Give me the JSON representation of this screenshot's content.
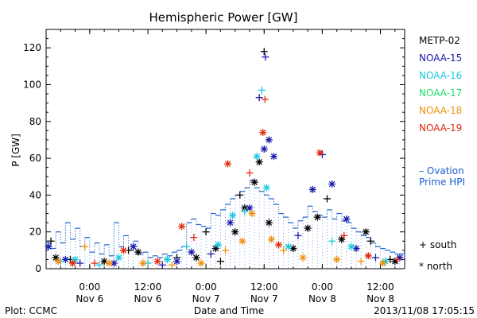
{
  "chart_data": {
    "type": "scatter",
    "title": "Hemispheric Power [GW]",
    "ylabel": "P [GW]",
    "xlabel": "Date and Time",
    "ylim": [
      0,
      130
    ],
    "yticks": [
      0,
      20,
      40,
      60,
      80,
      100,
      120
    ],
    "xlim": [
      "2013-11-05T15:00",
      "2013-11-08T17:00"
    ],
    "xticks": [
      {
        "x": "2013-11-06T00:00",
        "time": "0:00",
        "date": "Nov 6"
      },
      {
        "x": "2013-11-06T12:00",
        "time": "12:00",
        "date": "Nov 6"
      },
      {
        "x": "2013-11-07T00:00",
        "time": "0:00",
        "date": "Nov 7"
      },
      {
        "x": "2013-11-07T12:00",
        "time": "12:00",
        "date": "Nov 7"
      },
      {
        "x": "2013-11-08T00:00",
        "time": "0:00",
        "date": "Nov 8"
      },
      {
        "x": "2013-11-08T12:00",
        "time": "12:00",
        "date": "Nov 8"
      }
    ],
    "satellites": [
      {
        "name": "METP-02",
        "color": "#000000"
      },
      {
        "name": "NOAA-15",
        "color": "#1a1aaa"
      },
      {
        "name": "NOAA-16",
        "color": "#18c8e0"
      },
      {
        "name": "NOAA-17",
        "color": "#22e06a"
      },
      {
        "name": "NOAA-18",
        "color": "#f0900e"
      },
      {
        "name": "NOAA-19",
        "color": "#e02a0c"
      }
    ],
    "ovation": {
      "label_line1": "– Ovation",
      "label_line2": "Prime HPI",
      "color": "#1a5fd0",
      "points": [
        [
          "2013-11-05T15:00",
          14
        ],
        [
          "2013-11-05T16:00",
          11
        ],
        [
          "2013-11-05T17:00",
          20
        ],
        [
          "2013-11-05T18:00",
          14
        ],
        [
          "2013-11-05T19:00",
          25
        ],
        [
          "2013-11-05T20:00",
          16
        ],
        [
          "2013-11-05T21:00",
          22
        ],
        [
          "2013-11-05T22:00",
          12
        ],
        [
          "2013-11-05T23:00",
          17
        ],
        [
          "2013-11-06T00:00",
          9
        ],
        [
          "2013-11-06T01:00",
          14
        ],
        [
          "2013-11-06T02:00",
          8
        ],
        [
          "2013-11-06T03:00",
          13
        ],
        [
          "2013-11-06T04:00",
          7
        ],
        [
          "2013-11-06T05:00",
          25
        ],
        [
          "2013-11-06T06:00",
          12
        ],
        [
          "2013-11-06T07:00",
          18
        ],
        [
          "2013-11-06T08:00",
          10
        ],
        [
          "2013-11-06T09:00",
          15
        ],
        [
          "2013-11-06T10:00",
          8
        ],
        [
          "2013-11-06T11:00",
          9
        ],
        [
          "2013-11-06T12:00",
          6
        ],
        [
          "2013-11-06T13:00",
          7
        ],
        [
          "2013-11-06T14:00",
          6
        ],
        [
          "2013-11-06T15:00",
          8
        ],
        [
          "2013-11-06T16:00",
          7
        ],
        [
          "2013-11-06T17:00",
          9
        ],
        [
          "2013-11-06T18:00",
          10
        ],
        [
          "2013-11-06T19:00",
          12
        ],
        [
          "2013-11-06T20:00",
          25
        ],
        [
          "2013-11-06T21:00",
          27
        ],
        [
          "2013-11-06T22:00",
          24
        ],
        [
          "2013-11-06T23:00",
          23
        ],
        [
          "2013-11-07T00:00",
          22
        ],
        [
          "2013-11-07T01:00",
          30
        ],
        [
          "2013-11-07T02:00",
          29
        ],
        [
          "2013-11-07T03:00",
          32
        ],
        [
          "2013-11-07T04:00",
          35
        ],
        [
          "2013-11-07T05:00",
          38
        ],
        [
          "2013-11-07T06:00",
          40
        ],
        [
          "2013-11-07T07:00",
          42
        ],
        [
          "2013-11-07T08:00",
          44
        ],
        [
          "2013-11-07T09:00",
          48
        ],
        [
          "2013-11-07T10:00",
          44
        ],
        [
          "2013-11-07T11:00",
          42
        ],
        [
          "2013-11-07T12:00",
          40
        ],
        [
          "2013-11-07T13:00",
          38
        ],
        [
          "2013-11-07T14:00",
          35
        ],
        [
          "2013-11-07T15:00",
          30
        ],
        [
          "2013-11-07T16:00",
          28
        ],
        [
          "2013-11-07T17:00",
          25
        ],
        [
          "2013-11-07T18:00",
          22
        ],
        [
          "2013-11-07T19:00",
          26
        ],
        [
          "2013-11-07T20:00",
          28
        ],
        [
          "2013-11-07T21:00",
          34
        ],
        [
          "2013-11-07T22:00",
          31
        ],
        [
          "2013-11-07T23:00",
          29
        ],
        [
          "2013-11-08T00:00",
          28
        ],
        [
          "2013-11-08T01:00",
          32
        ],
        [
          "2013-11-08T02:00",
          27
        ],
        [
          "2013-11-08T03:00",
          30
        ],
        [
          "2013-11-08T04:00",
          26
        ],
        [
          "2013-11-08T05:00",
          25
        ],
        [
          "2013-11-08T06:00",
          22
        ],
        [
          "2013-11-08T07:00",
          20
        ],
        [
          "2013-11-08T08:00",
          18
        ],
        [
          "2013-11-08T09:00",
          17
        ],
        [
          "2013-11-08T10:00",
          14
        ],
        [
          "2013-11-08T11:00",
          12
        ],
        [
          "2013-11-08T12:00",
          11
        ],
        [
          "2013-11-08T13:00",
          10
        ],
        [
          "2013-11-08T14:00",
          9
        ],
        [
          "2013-11-08T15:00",
          8
        ],
        [
          "2013-11-08T16:00",
          8
        ],
        [
          "2013-11-08T17:00",
          7
        ]
      ]
    },
    "markers": [
      {
        "symbol": "+",
        "label": "south"
      },
      {
        "symbol": "*",
        "label": "north"
      }
    ],
    "points": [
      {
        "sat": "METP-02",
        "hemi": "south",
        "x": "2013-11-05T16:00",
        "y": 15
      },
      {
        "sat": "METP-02",
        "hemi": "north",
        "x": "2013-11-05T17:00",
        "y": 6
      },
      {
        "sat": "METP-02",
        "hemi": "south",
        "x": "2013-11-05T20:00",
        "y": 5
      },
      {
        "sat": "METP-02",
        "hemi": "north",
        "x": "2013-11-06T03:00",
        "y": 4
      },
      {
        "sat": "METP-02",
        "hemi": "south",
        "x": "2013-11-06T08:00",
        "y": 10
      },
      {
        "sat": "METP-02",
        "hemi": "north",
        "x": "2013-11-06T10:00",
        "y": 9
      },
      {
        "sat": "METP-02",
        "hemi": "south",
        "x": "2013-11-06T18:00",
        "y": 6
      },
      {
        "sat": "METP-02",
        "hemi": "north",
        "x": "2013-11-06T22:00",
        "y": 6
      },
      {
        "sat": "METP-02",
        "hemi": "south",
        "x": "2013-11-07T00:00",
        "y": 20
      },
      {
        "sat": "METP-02",
        "hemi": "north",
        "x": "2013-11-07T02:00",
        "y": 11
      },
      {
        "sat": "METP-02",
        "hemi": "south",
        "x": "2013-11-07T03:00",
        "y": 4
      },
      {
        "sat": "METP-02",
        "hemi": "north",
        "x": "2013-11-07T06:00",
        "y": 20
      },
      {
        "sat": "METP-02",
        "hemi": "south",
        "x": "2013-11-07T07:00",
        "y": 40
      },
      {
        "sat": "METP-02",
        "hemi": "north",
        "x": "2013-11-07T08:00",
        "y": 33
      },
      {
        "sat": "METP-02",
        "hemi": "north",
        "x": "2013-11-07T10:00",
        "y": 47
      },
      {
        "sat": "METP-02",
        "hemi": "north",
        "x": "2013-11-07T11:00",
        "y": 58
      },
      {
        "sat": "METP-02",
        "hemi": "south",
        "x": "2013-11-07T12:00",
        "y": 118
      },
      {
        "sat": "METP-02",
        "hemi": "north",
        "x": "2013-11-07T13:00",
        "y": 25
      },
      {
        "sat": "METP-02",
        "hemi": "north",
        "x": "2013-11-07T18:00",
        "y": 11
      },
      {
        "sat": "METP-02",
        "hemi": "north",
        "x": "2013-11-07T21:00",
        "y": 22
      },
      {
        "sat": "METP-02",
        "hemi": "north",
        "x": "2013-11-07T23:00",
        "y": 28
      },
      {
        "sat": "METP-02",
        "hemi": "south",
        "x": "2013-11-08T01:00",
        "y": 38
      },
      {
        "sat": "METP-02",
        "hemi": "north",
        "x": "2013-11-08T04:00",
        "y": 16
      },
      {
        "sat": "METP-02",
        "hemi": "north",
        "x": "2013-11-08T09:00",
        "y": 20
      },
      {
        "sat": "METP-02",
        "hemi": "south",
        "x": "2013-11-08T10:00",
        "y": 15
      },
      {
        "sat": "METP-02",
        "hemi": "south",
        "x": "2013-11-08T14:00",
        "y": 5
      },
      {
        "sat": "METP-02",
        "hemi": "north",
        "x": "2013-11-08T15:00",
        "y": 4
      },
      {
        "sat": "NOAA-15",
        "hemi": "north",
        "x": "2013-11-05T15:30",
        "y": 12
      },
      {
        "sat": "NOAA-15",
        "hemi": "north",
        "x": "2013-11-05T19:00",
        "y": 5
      },
      {
        "sat": "NOAA-15",
        "hemi": "south",
        "x": "2013-11-05T22:00",
        "y": 3
      },
      {
        "sat": "NOAA-15",
        "hemi": "north",
        "x": "2013-11-06T05:00",
        "y": 3
      },
      {
        "sat": "NOAA-15",
        "hemi": "north",
        "x": "2013-11-06T09:00",
        "y": 12
      },
      {
        "sat": "NOAA-15",
        "hemi": "south",
        "x": "2013-11-06T15:00",
        "y": 2
      },
      {
        "sat": "NOAA-15",
        "hemi": "north",
        "x": "2013-11-06T18:00",
        "y": 4
      },
      {
        "sat": "NOAA-15",
        "hemi": "north",
        "x": "2013-11-06T21:00",
        "y": 9
      },
      {
        "sat": "NOAA-15",
        "hemi": "south",
        "x": "2013-11-07T01:00",
        "y": 8
      },
      {
        "sat": "NOAA-15",
        "hemi": "north",
        "x": "2013-11-07T05:00",
        "y": 25
      },
      {
        "sat": "NOAA-15",
        "hemi": "north",
        "x": "2013-11-07T09:00",
        "y": 33
      },
      {
        "sat": "NOAA-15",
        "hemi": "south",
        "x": "2013-11-07T11:00",
        "y": 93
      },
      {
        "sat": "NOAA-15",
        "hemi": "south",
        "x": "2013-11-07T12:15",
        "y": 115
      },
      {
        "sat": "NOAA-15",
        "hemi": "north",
        "x": "2013-11-07T12:00",
        "y": 65
      },
      {
        "sat": "NOAA-15",
        "hemi": "north",
        "x": "2013-11-07T13:00",
        "y": 70
      },
      {
        "sat": "NOAA-15",
        "hemi": "north",
        "x": "2013-11-07T14:00",
        "y": 61
      },
      {
        "sat": "NOAA-15",
        "hemi": "south",
        "x": "2013-11-07T19:00",
        "y": 18
      },
      {
        "sat": "NOAA-15",
        "hemi": "north",
        "x": "2013-11-07T22:00",
        "y": 43
      },
      {
        "sat": "NOAA-15",
        "hemi": "south",
        "x": "2013-11-08T00:00",
        "y": 62
      },
      {
        "sat": "NOAA-15",
        "hemi": "north",
        "x": "2013-11-08T02:00",
        "y": 46
      },
      {
        "sat": "NOAA-15",
        "hemi": "north",
        "x": "2013-11-08T05:00",
        "y": 27
      },
      {
        "sat": "NOAA-15",
        "hemi": "north",
        "x": "2013-11-08T07:00",
        "y": 11
      },
      {
        "sat": "NOAA-15",
        "hemi": "south",
        "x": "2013-11-08T11:00",
        "y": 6
      },
      {
        "sat": "NOAA-15",
        "hemi": "north",
        "x": "2013-11-08T16:00",
        "y": 6
      },
      {
        "sat": "NOAA-16",
        "hemi": "south",
        "x": "2013-11-05T18:00",
        "y": 4
      },
      {
        "sat": "NOAA-16",
        "hemi": "north",
        "x": "2013-11-05T21:00",
        "y": 5
      },
      {
        "sat": "NOAA-16",
        "hemi": "south",
        "x": "2013-11-06T02:00",
        "y": 2
      },
      {
        "sat": "NOAA-16",
        "hemi": "north",
        "x": "2013-11-06T06:00",
        "y": 6
      },
      {
        "sat": "NOAA-16",
        "hemi": "south",
        "x": "2013-11-06T12:00",
        "y": 3
      },
      {
        "sat": "NOAA-16",
        "hemi": "north",
        "x": "2013-11-06T16:00",
        "y": 5
      },
      {
        "sat": "NOAA-16",
        "hemi": "south",
        "x": "2013-11-06T20:00",
        "y": 12
      },
      {
        "sat": "NOAA-16",
        "hemi": "north",
        "x": "2013-11-07T02:30",
        "y": 13
      },
      {
        "sat": "NOAA-16",
        "hemi": "north",
        "x": "2013-11-07T05:30",
        "y": 29
      },
      {
        "sat": "NOAA-16",
        "hemi": "south",
        "x": "2013-11-07T08:00",
        "y": 31
      },
      {
        "sat": "NOAA-16",
        "hemi": "north",
        "x": "2013-11-07T10:30",
        "y": 61
      },
      {
        "sat": "NOAA-16",
        "hemi": "south",
        "x": "2013-11-07T11:30",
        "y": 97
      },
      {
        "sat": "NOAA-16",
        "hemi": "north",
        "x": "2013-11-07T12:30",
        "y": 44
      },
      {
        "sat": "NOAA-16",
        "hemi": "north",
        "x": "2013-11-07T17:00",
        "y": 12
      },
      {
        "sat": "NOAA-16",
        "hemi": "south",
        "x": "2013-11-08T02:00",
        "y": 15
      },
      {
        "sat": "NOAA-16",
        "hemi": "north",
        "x": "2013-11-08T06:00",
        "y": 12
      },
      {
        "sat": "NOAA-16",
        "hemi": "north",
        "x": "2013-11-08T13:00",
        "y": 4
      },
      {
        "sat": "NOAA-18",
        "hemi": "north",
        "x": "2013-11-05T17:30",
        "y": 4
      },
      {
        "sat": "NOAA-18",
        "hemi": "south",
        "x": "2013-11-05T23:00",
        "y": 12
      },
      {
        "sat": "NOAA-18",
        "hemi": "north",
        "x": "2013-11-06T04:00",
        "y": 3
      },
      {
        "sat": "NOAA-18",
        "hemi": "north",
        "x": "2013-11-06T11:00",
        "y": 3
      },
      {
        "sat": "NOAA-18",
        "hemi": "south",
        "x": "2013-11-06T17:00",
        "y": 2
      },
      {
        "sat": "NOAA-18",
        "hemi": "north",
        "x": "2013-11-06T23:00",
        "y": 3
      },
      {
        "sat": "NOAA-18",
        "hemi": "south",
        "x": "2013-11-07T04:00",
        "y": 10
      },
      {
        "sat": "NOAA-18",
        "hemi": "north",
        "x": "2013-11-07T07:30",
        "y": 15
      },
      {
        "sat": "NOAA-18",
        "hemi": "north",
        "x": "2013-11-07T09:30",
        "y": 30
      },
      {
        "sat": "NOAA-18",
        "hemi": "north",
        "x": "2013-11-07T13:30",
        "y": 16
      },
      {
        "sat": "NOAA-18",
        "hemi": "south",
        "x": "2013-11-07T16:00",
        "y": 10
      },
      {
        "sat": "NOAA-18",
        "hemi": "north",
        "x": "2013-11-07T20:00",
        "y": 6
      },
      {
        "sat": "NOAA-18",
        "hemi": "north",
        "x": "2013-11-08T03:00",
        "y": 5
      },
      {
        "sat": "NOAA-18",
        "hemi": "south",
        "x": "2013-11-08T08:00",
        "y": 4
      },
      {
        "sat": "NOAA-18",
        "hemi": "north",
        "x": "2013-11-08T12:30",
        "y": 3
      },
      {
        "sat": "NOAA-19",
        "hemi": "north",
        "x": "2013-11-05T20:30",
        "y": 3
      },
      {
        "sat": "NOAA-19",
        "hemi": "south",
        "x": "2013-11-06T01:00",
        "y": 3
      },
      {
        "sat": "NOAA-19",
        "hemi": "north",
        "x": "2013-11-06T07:00",
        "y": 10
      },
      {
        "sat": "NOAA-19",
        "hemi": "north",
        "x": "2013-11-06T14:00",
        "y": 4
      },
      {
        "sat": "NOAA-19",
        "hemi": "north",
        "x": "2013-11-06T19:00",
        "y": 23
      },
      {
        "sat": "NOAA-19",
        "hemi": "south",
        "x": "2013-11-06T21:30",
        "y": 17
      },
      {
        "sat": "NOAA-19",
        "hemi": "north",
        "x": "2013-11-07T04:30",
        "y": 57
      },
      {
        "sat": "NOAA-19",
        "hemi": "south",
        "x": "2013-11-07T09:00",
        "y": 52
      },
      {
        "sat": "NOAA-19",
        "hemi": "north",
        "x": "2013-11-07T11:45",
        "y": 74
      },
      {
        "sat": "NOAA-19",
        "hemi": "south",
        "x": "2013-11-07T12:10",
        "y": 92
      },
      {
        "sat": "NOAA-19",
        "hemi": "north",
        "x": "2013-11-07T15:00",
        "y": 13
      },
      {
        "sat": "NOAA-19",
        "hemi": "north",
        "x": "2013-11-07T23:30",
        "y": 63
      },
      {
        "sat": "NOAA-19",
        "hemi": "south",
        "x": "2013-11-08T04:30",
        "y": 18
      },
      {
        "sat": "NOAA-19",
        "hemi": "north",
        "x": "2013-11-08T09:30",
        "y": 7
      },
      {
        "sat": "NOAA-19",
        "hemi": "south",
        "x": "2013-11-08T15:30",
        "y": 5
      }
    ]
  },
  "footer": {
    "plot_credit": "Plot: CCMC",
    "timestamp": "2013/11/08 17:05:15"
  }
}
